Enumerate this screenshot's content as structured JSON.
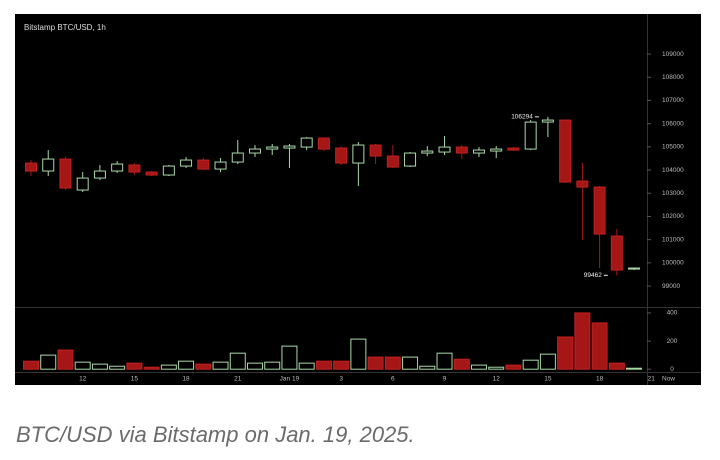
{
  "chart_data": [
    {
      "type": "candlestick",
      "title": "Bitstamp BTC/USD, 1h",
      "up_color": "#a9d9a9",
      "down_color": "#a51616",
      "open": [
        104302,
        103957,
        104474,
        103138,
        103655,
        103957,
        104216,
        103914,
        103785,
        104172,
        104431,
        104043,
        104345,
        104733,
        104905,
        104948,
        104991,
        105379,
        104948,
        104302,
        105078,
        104603,
        104172,
        104733,
        104776,
        104991,
        104733,
        104819,
        104948,
        104905,
        106069,
        106155,
        103526,
        103267,
        101155,
        99733,
        null,
        null
      ],
      "high": [
        104431,
        104862,
        104560,
        103914,
        104216,
        104388,
        104302,
        103957,
        104216,
        104560,
        104517,
        104517,
        105293,
        105078,
        105121,
        105121,
        105422,
        105422,
        105035,
        105207,
        105121,
        105078,
        104776,
        105035,
        105466,
        105078,
        104991,
        105035,
        104991,
        106155,
        106294,
        106155,
        104302,
        103310,
        101457,
        99800,
        null,
        null
      ],
      "low": [
        103741,
        103741,
        103138,
        103052,
        103569,
        103871,
        103785,
        103741,
        103741,
        104086,
        104000,
        103914,
        104259,
        104560,
        104647,
        104086,
        104862,
        104819,
        104216,
        103310,
        104259,
        104086,
        104129,
        104603,
        104647,
        104474,
        104560,
        104517,
        104819,
        104862,
        105422,
        103440,
        100983,
        99776,
        99462,
        99690,
        null,
        null
      ],
      "close": [
        103957,
        104474,
        103224,
        103655,
        103957,
        104259,
        103914,
        103785,
        104172,
        104431,
        104043,
        104345,
        104733,
        104905,
        104991,
        105035,
        105379,
        104905,
        104302,
        105078,
        104603,
        104129,
        104733,
        104819,
        104991,
        104733,
        104862,
        104905,
        104862,
        106069,
        106155,
        103483,
        103267,
        101241,
        99690,
        99776,
        null,
        null
      ],
      "ylim": [
        98140,
        110640
      ],
      "yticks": [
        99000,
        100000,
        101000,
        102000,
        103000,
        104000,
        105000,
        106000,
        107000,
        108000,
        109000
      ],
      "annotations": [
        {
          "x": 30,
          "value": 106294
        },
        {
          "x": 34,
          "value": 99462
        }
      ]
    },
    {
      "type": "volume",
      "categories": [
        null,
        null,
        null,
        "12",
        null,
        null,
        "15",
        null,
        null,
        "18",
        null,
        null,
        "21",
        null,
        null,
        "Jan 19",
        null,
        null,
        "3",
        null,
        null,
        "6",
        null,
        null,
        "9",
        null,
        null,
        "12",
        null,
        null,
        "15",
        null,
        null,
        "18",
        null,
        null,
        "21",
        "Now"
      ],
      "values": [
        57,
        100,
        136,
        50,
        36,
        21,
        43,
        14,
        29,
        57,
        36,
        50,
        114,
        43,
        50,
        164,
        43,
        57,
        57,
        214,
        86,
        86,
        86,
        21,
        114,
        71,
        29,
        14,
        29,
        64,
        107,
        229,
        400,
        329,
        43,
        7,
        null,
        null
      ],
      "ylim": [
        -20,
        428
      ],
      "yticks": [
        0,
        200,
        400
      ]
    }
  ],
  "caption": "BTC/USD via Bitstamp on Jan. 19, 2025."
}
